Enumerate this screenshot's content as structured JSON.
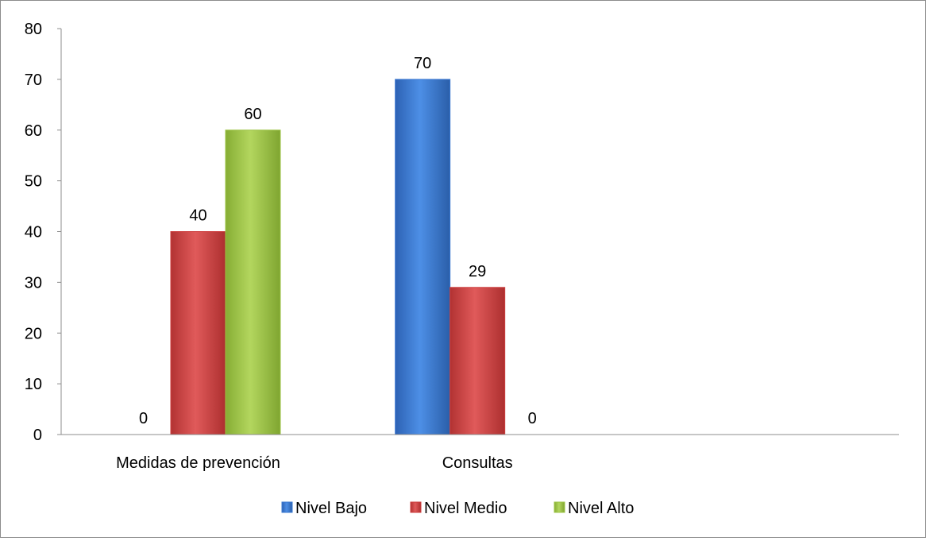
{
  "chart_data": {
    "type": "bar",
    "title": "",
    "xlabel": "",
    "ylabel": "",
    "categories": [
      "Medidas de prevención",
      "Consultas"
    ],
    "series": [
      {
        "name": "Nivel Bajo",
        "values": [
          0,
          70
        ],
        "color": "#3a78d2"
      },
      {
        "name": "Nivel Medio",
        "values": [
          40,
          29
        ],
        "color": "#cc3e3e"
      },
      {
        "name": "Nivel Alto",
        "values": [
          60,
          0
        ],
        "color": "#9cc445"
      }
    ],
    "ylim": [
      0,
      80
    ],
    "yticks": [
      "0",
      "10",
      "20",
      "30",
      "40",
      "50",
      "60",
      "70",
      "80"
    ],
    "data_labels": true,
    "grid": false,
    "legend_position": "bottom"
  }
}
